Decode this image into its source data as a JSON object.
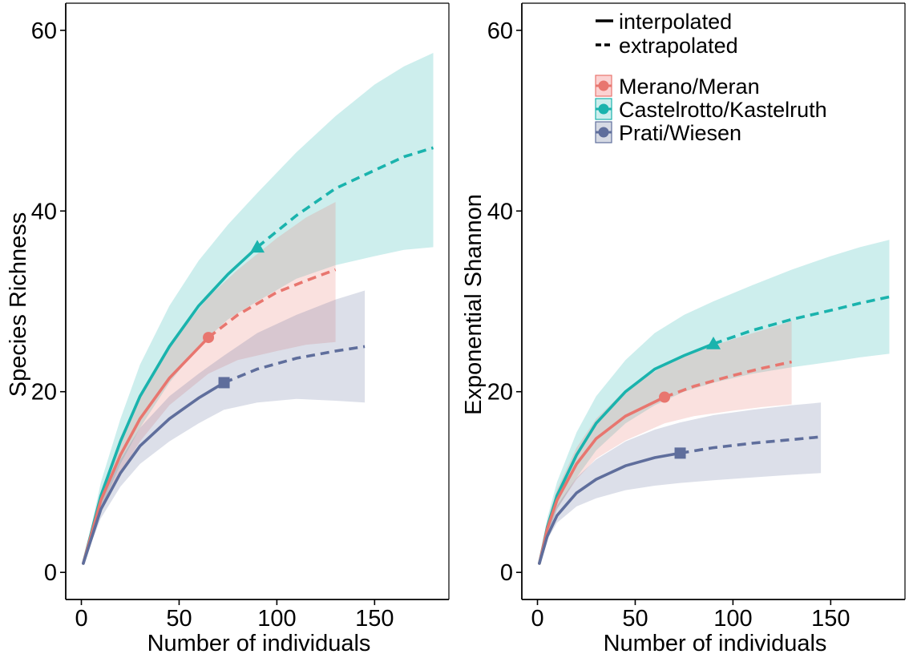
{
  "colors": {
    "Merano/Meran": "#e8766f",
    "Castelrotto/Kastelruth": "#1ab3ad",
    "Prati/Wiesen": "#5f6e9c",
    "Merano/Meran_band": "#fbd2d2",
    "Castelrotto/Kastelruth_band": "#cdeeed",
    "Prati/Wiesen_band": "#d6dae4"
  },
  "legend": {
    "line_types": [
      {
        "label": "interpolated",
        "style": "solid"
      },
      {
        "label": "extrapolated",
        "style": "dashed"
      }
    ],
    "sites": [
      {
        "label": "Merano/Meran",
        "marker": "circle"
      },
      {
        "label": "Castelrotto/Kastelruth",
        "marker": "triangle"
      },
      {
        "label": "Prati/Wiesen",
        "marker": "square"
      }
    ]
  },
  "chart_data": [
    {
      "type": "line",
      "title": "",
      "xlabel": "Number of individuals",
      "ylabel": "Species Richness",
      "xlim": [
        -8,
        188
      ],
      "ylim": [
        -3,
        63
      ],
      "xticks": [
        0,
        50,
        100,
        150
      ],
      "yticks": [
        0,
        20,
        40,
        60
      ],
      "grid": false,
      "series": [
        {
          "name": "Castelrotto/Kastelruth",
          "marker": "triangle",
          "observed": {
            "x": 90,
            "y": 36
          },
          "x": [
            1,
            10,
            20,
            30,
            45,
            60,
            75,
            90,
            110,
            130,
            150,
            165,
            180
          ],
          "y": [
            1,
            8.5,
            14.5,
            19.5,
            25,
            29.5,
            33,
            36,
            39.5,
            42.5,
            44.5,
            46,
            47
          ],
          "lower": [
            1,
            7,
            12,
            16,
            21,
            25,
            28,
            30,
            32.5,
            34,
            35,
            35.7,
            36
          ],
          "upper": [
            1,
            10,
            17,
            23,
            29.5,
            34.5,
            38.5,
            42,
            46.5,
            50.5,
            54,
            56,
            57.5
          ]
        },
        {
          "name": "Merano/Meran",
          "marker": "circle",
          "observed": {
            "x": 65,
            "y": 26
          },
          "x": [
            1,
            10,
            20,
            30,
            45,
            65,
            80,
            100,
            115,
            130
          ],
          "y": [
            1,
            8,
            13,
            17,
            21.5,
            26,
            28.5,
            31,
            32.3,
            33.5
          ],
          "lower": [
            1,
            7,
            11,
            14.5,
            18.5,
            22,
            23.5,
            24.5,
            25.2,
            25.5
          ],
          "upper": [
            1,
            9,
            15,
            19.5,
            25,
            30.5,
            33.5,
            37,
            39.3,
            41
          ]
        },
        {
          "name": "Prati/Wiesen",
          "marker": "square",
          "observed": {
            "x": 73,
            "y": 21
          },
          "x": [
            1,
            10,
            20,
            30,
            45,
            60,
            73,
            90,
            110,
            130,
            145
          ],
          "y": [
            1,
            7,
            11,
            14,
            17,
            19.3,
            21,
            22.5,
            23.7,
            24.5,
            25
          ],
          "lower": [
            1,
            6,
            9.5,
            12,
            14.5,
            16.5,
            18,
            18.8,
            19.2,
            19,
            18.8
          ],
          "upper": [
            1,
            8,
            12.5,
            16,
            19.5,
            22,
            24,
            26.5,
            28.5,
            30.2,
            31.2
          ]
        }
      ]
    },
    {
      "type": "line",
      "title": "",
      "xlabel": "Number of individuals",
      "ylabel": "Exponential Shannon",
      "xlim": [
        -8,
        188
      ],
      "ylim": [
        -3,
        63
      ],
      "xticks": [
        0,
        50,
        100,
        150
      ],
      "yticks": [
        0,
        20,
        40,
        60
      ],
      "grid": false,
      "series": [
        {
          "name": "Castelrotto/Kastelruth",
          "marker": "triangle",
          "observed": {
            "x": 90,
            "y": 25.3
          },
          "x": [
            1,
            5,
            10,
            20,
            30,
            45,
            60,
            75,
            90,
            110,
            130,
            150,
            165,
            180
          ],
          "y": [
            1,
            5,
            8.5,
            13,
            16.5,
            20,
            22.5,
            24,
            25.3,
            26.8,
            28,
            29,
            29.8,
            30.5
          ],
          "lower": [
            1,
            4,
            7,
            10.5,
            13.5,
            16.5,
            18.5,
            20,
            21,
            22,
            22.7,
            23.3,
            23.8,
            24.2
          ],
          "upper": [
            1,
            6,
            10,
            15.5,
            19.5,
            23.5,
            26.5,
            28.5,
            30,
            31.8,
            33.5,
            35,
            36,
            36.8
          ]
        },
        {
          "name": "Merano/Meran",
          "marker": "circle",
          "observed": {
            "x": 65,
            "y": 19.4
          },
          "x": [
            1,
            5,
            10,
            20,
            30,
            45,
            65,
            80,
            100,
            115,
            130
          ],
          "y": [
            1,
            4.8,
            8,
            12,
            14.8,
            17.3,
            19.4,
            20.6,
            21.8,
            22.6,
            23.3
          ],
          "lower": [
            1,
            4.2,
            7,
            10.3,
            12.6,
            14.6,
            16.5,
            17.3,
            17.9,
            18.3,
            18.6
          ],
          "upper": [
            1,
            5.6,
            9.2,
            13.8,
            17,
            20.2,
            22.9,
            24.4,
            25.8,
            26.8,
            27.8
          ]
        },
        {
          "name": "Prati/Wiesen",
          "marker": "square",
          "observed": {
            "x": 73,
            "y": 13.2
          },
          "x": [
            1,
            5,
            10,
            20,
            30,
            45,
            60,
            73,
            90,
            110,
            130,
            145
          ],
          "y": [
            1,
            4,
            6.3,
            8.8,
            10.3,
            11.8,
            12.7,
            13.2,
            13.8,
            14.3,
            14.7,
            15
          ],
          "lower": [
            1,
            3.6,
            5.5,
            7.3,
            8.2,
            9.1,
            9.6,
            9.9,
            10.2,
            10.5,
            10.8,
            11
          ],
          "upper": [
            1,
            4.6,
            7.4,
            10.5,
            12.5,
            14.5,
            15.8,
            16.6,
            17.4,
            18,
            18.5,
            18.8
          ]
        }
      ]
    }
  ]
}
